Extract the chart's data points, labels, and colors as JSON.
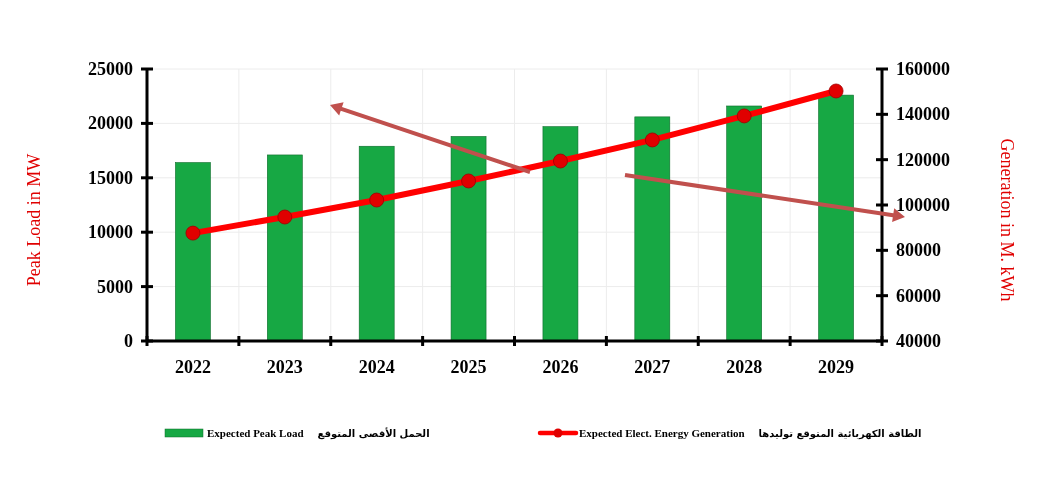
{
  "chart_data": {
    "type": "bar",
    "categories": [
      "2022",
      "2023",
      "2024",
      "2025",
      "2026",
      "2027",
      "2028",
      "2029"
    ],
    "series": [
      {
        "name": "Expected Peak Load",
        "color": "#17a844",
        "values": [
          16400,
          17100,
          17900,
          18800,
          19700,
          20600,
          21600,
          22600
        ]
      },
      {
        "name": "Expected Elect. Energy Generation",
        "type": "line",
        "axis": "y2",
        "color": "#ff0000",
        "values": [
          87600,
          94700,
          102200,
          110600,
          119400,
          128700,
          139300,
          150300
        ]
      }
    ],
    "ylabel": "Peak Load in MW",
    "y2label": "Generation in M. kWh",
    "ylim": [
      0,
      25000
    ],
    "yticks": [
      0,
      5000,
      10000,
      15000,
      20000,
      25000
    ],
    "y2lim": [
      40000,
      160000
    ],
    "y2ticks": [
      40000,
      60000,
      80000,
      100000,
      120000,
      140000,
      160000
    ],
    "annotations": [
      "الحمل الأقصى المتوقع",
      "الطاقة الكهربائية المتوقع توليدها"
    ],
    "grid": true,
    "legend": "bottom",
    "marker": "circle"
  }
}
